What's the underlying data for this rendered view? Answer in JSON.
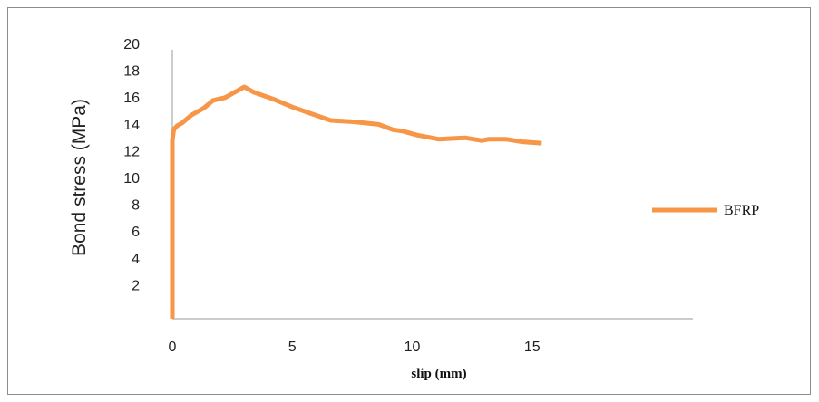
{
  "chart_data": {
    "type": "line",
    "title": "",
    "xlabel": "slip (mm)",
    "ylabel": "Bond stress  (MPa)",
    "xlim": [
      0,
      21
    ],
    "ylim": [
      0,
      20
    ],
    "x_ticks": [
      0,
      5,
      10,
      15
    ],
    "y_ticks": [
      2,
      4,
      6,
      8,
      10,
      12,
      14,
      16,
      18,
      20
    ],
    "grid": false,
    "legend_position": "right",
    "series": [
      {
        "name": "BFRP",
        "color": "#f79646",
        "x": [
          0.0,
          0.0,
          0.05,
          0.1,
          0.2,
          0.4,
          0.8,
          1.3,
          1.7,
          2.2,
          2.7,
          3.0,
          3.4,
          4.2,
          5.0,
          5.8,
          6.6,
          7.5,
          8.6,
          9.2,
          9.6,
          10.2,
          11.1,
          12.2,
          12.9,
          13.2,
          13.9,
          14.6,
          15.4
        ],
        "y": [
          0.0,
          13.3,
          14.0,
          14.2,
          14.4,
          14.6,
          15.2,
          15.7,
          16.3,
          16.5,
          17.0,
          17.3,
          16.9,
          16.4,
          15.8,
          15.3,
          14.8,
          14.7,
          14.5,
          14.1,
          14.0,
          13.7,
          13.4,
          13.5,
          13.3,
          13.4,
          13.4,
          13.2,
          13.1
        ]
      }
    ]
  }
}
